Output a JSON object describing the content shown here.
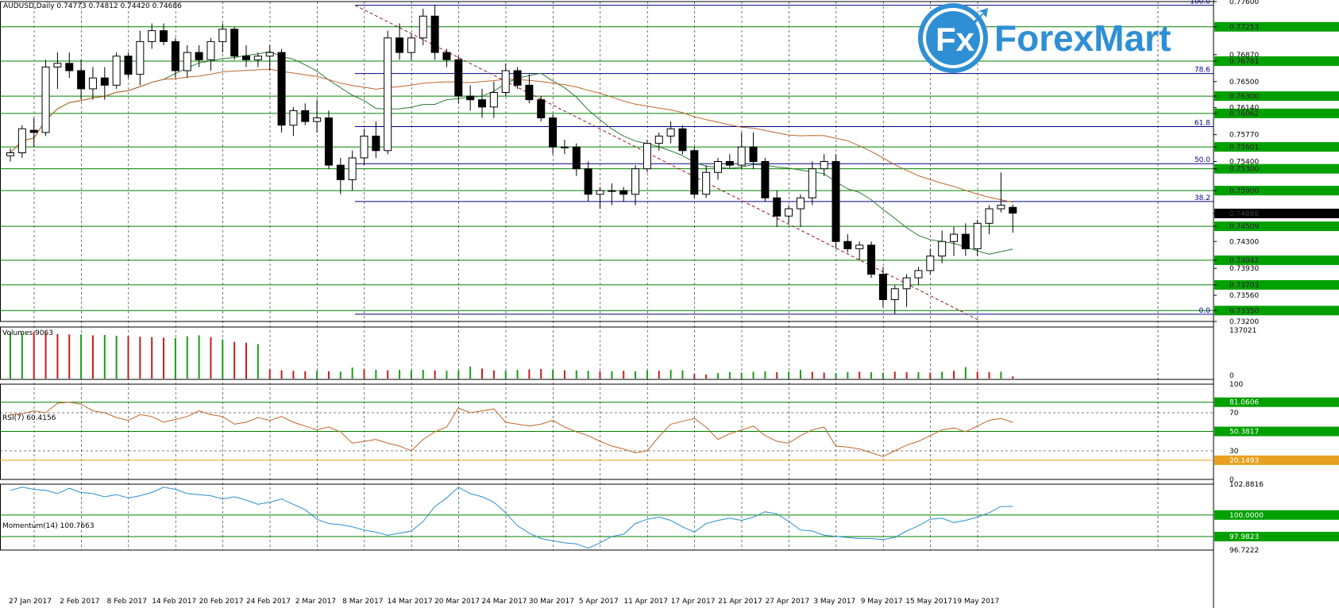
{
  "chart_data": {
    "type": "candlestick",
    "symbol_header": "AUDUSD,Daily  0.74773 0.74812 0.74420 0.74686",
    "logo_text": "ForexMart",
    "logo_mark": "Fx",
    "price_axis": {
      "min": 0.732,
      "max": 0.776,
      "ticks": [
        "0.77600",
        "0.77253",
        "0.76870",
        "0.76781",
        "0.76500",
        "0.76300",
        "0.76140",
        "0.76062",
        "0.75770",
        "0.75601",
        "0.75400",
        "0.75300",
        "0.75000",
        "0.74686",
        "0.74509",
        "0.74300",
        "0.74042",
        "0.73930",
        "0.73703",
        "0.73560",
        "0.73350",
        "0.73200"
      ]
    },
    "highlighted_levels": [
      {
        "price": 0.77253,
        "label": "0.77253",
        "color": "#00a000"
      },
      {
        "price": 0.76781,
        "label": "0.76781",
        "color": "#00a000"
      },
      {
        "price": 0.763,
        "label": "0.76300",
        "color": "#00a000"
      },
      {
        "price": 0.76062,
        "label": "0.76062",
        "color": "#00a000"
      },
      {
        "price": 0.75601,
        "label": "0.75601",
        "color": "#00a000"
      },
      {
        "price": 0.753,
        "label": "0.75300",
        "color": "#00a000"
      },
      {
        "price": 0.75,
        "label": "0.75000",
        "color": "#00a000"
      },
      {
        "price": 0.74686,
        "label": "0.74686",
        "color": "#000000"
      },
      {
        "price": 0.74509,
        "label": "0.74509",
        "color": "#00a000"
      },
      {
        "price": 0.74042,
        "label": "0.74042",
        "color": "#00a000"
      },
      {
        "price": 0.73703,
        "label": "0.73703",
        "color": "#00a000"
      },
      {
        "price": 0.7335,
        "label": "0.73350",
        "color": "#00a000"
      }
    ],
    "fibonacci": [
      {
        "label": "100.0",
        "price": 0.7755
      },
      {
        "label": "78.6",
        "price": 0.7661
      },
      {
        "label": "61.8",
        "price": 0.7588
      },
      {
        "label": "50.0",
        "price": 0.7537
      },
      {
        "label": "38.2",
        "price": 0.7485
      },
      {
        "label": "0.0",
        "price": 0.733
      }
    ],
    "x_labels": [
      "27 Jan 2017",
      "2 Feb 2017",
      "8 Feb 2017",
      "14 Feb 2017",
      "20 Feb 2017",
      "24 Feb 2017",
      "2 Mar 2017",
      "8 Mar 2017",
      "14 Mar 2017",
      "20 Mar 2017",
      "24 Mar 2017",
      "30 Mar 2017",
      "5 Apr 2017",
      "11 Apr 2017",
      "17 Apr 2017",
      "21 Apr 2017",
      "27 Apr 2017",
      "3 May 2017",
      "9 May 2017",
      "15 May 2017",
      "19 May 2017"
    ],
    "candles": [
      [
        0.7548,
        0.7558,
        0.754,
        0.7552
      ],
      [
        0.7552,
        0.759,
        0.7545,
        0.7585
      ],
      [
        0.7583,
        0.76,
        0.756,
        0.758
      ],
      [
        0.758,
        0.768,
        0.7575,
        0.767
      ],
      [
        0.767,
        0.769,
        0.764,
        0.7675
      ],
      [
        0.7675,
        0.769,
        0.7655,
        0.7665
      ],
      [
        0.7665,
        0.768,
        0.7625,
        0.764
      ],
      [
        0.764,
        0.767,
        0.7625,
        0.7655
      ],
      [
        0.7655,
        0.767,
        0.7625,
        0.7645
      ],
      [
        0.7645,
        0.769,
        0.764,
        0.7685
      ],
      [
        0.7685,
        0.769,
        0.7655,
        0.766
      ],
      [
        0.766,
        0.772,
        0.7645,
        0.7705
      ],
      [
        0.7705,
        0.773,
        0.7695,
        0.772
      ],
      [
        0.772,
        0.773,
        0.77,
        0.7705
      ],
      [
        0.7705,
        0.771,
        0.7655,
        0.7665
      ],
      [
        0.7665,
        0.77,
        0.7655,
        0.769
      ],
      [
        0.769,
        0.77,
        0.767,
        0.768
      ],
      [
        0.768,
        0.771,
        0.7665,
        0.7705
      ],
      [
        0.7705,
        0.773,
        0.769,
        0.7722
      ],
      [
        0.7722,
        0.7725,
        0.768,
        0.7685
      ],
      [
        0.7685,
        0.77,
        0.767,
        0.768
      ],
      [
        0.768,
        0.769,
        0.767,
        0.7685
      ],
      [
        0.7685,
        0.77,
        0.7665,
        0.769
      ],
      [
        0.769,
        0.7695,
        0.758,
        0.759
      ],
      [
        0.759,
        0.7615,
        0.7575,
        0.761
      ],
      [
        0.761,
        0.762,
        0.759,
        0.7595
      ],
      [
        0.7595,
        0.7625,
        0.758,
        0.76
      ],
      [
        0.76,
        0.761,
        0.753,
        0.7535
      ],
      [
        0.7535,
        0.7545,
        0.7495,
        0.7515
      ],
      [
        0.7515,
        0.7555,
        0.75,
        0.7545
      ],
      [
        0.7545,
        0.7585,
        0.7535,
        0.7575
      ],
      [
        0.7575,
        0.7595,
        0.7545,
        0.7555
      ],
      [
        0.7555,
        0.772,
        0.755,
        0.771
      ],
      [
        0.771,
        0.773,
        0.768,
        0.769
      ],
      [
        0.769,
        0.7715,
        0.768,
        0.771
      ],
      [
        0.771,
        0.775,
        0.77,
        0.774
      ],
      [
        0.774,
        0.7755,
        0.768,
        0.769
      ],
      [
        0.769,
        0.7695,
        0.767,
        0.768
      ],
      [
        0.768,
        0.7685,
        0.762,
        0.763
      ],
      [
        0.763,
        0.7645,
        0.761,
        0.7625
      ],
      [
        0.7625,
        0.764,
        0.76,
        0.7615
      ],
      [
        0.7615,
        0.765,
        0.76,
        0.7635
      ],
      [
        0.7635,
        0.7675,
        0.763,
        0.7665
      ],
      [
        0.7665,
        0.767,
        0.764,
        0.7645
      ],
      [
        0.7645,
        0.766,
        0.762,
        0.7625
      ],
      [
        0.7625,
        0.763,
        0.7595,
        0.76
      ],
      [
        0.76,
        0.7605,
        0.755,
        0.756
      ],
      [
        0.756,
        0.757,
        0.755,
        0.756
      ],
      [
        0.756,
        0.7565,
        0.752,
        0.753
      ],
      [
        0.753,
        0.754,
        0.7485,
        0.7495
      ],
      [
        0.7495,
        0.7505,
        0.7475,
        0.75
      ],
      [
        0.75,
        0.751,
        0.748,
        0.75
      ],
      [
        0.75,
        0.7505,
        0.7485,
        0.7495
      ],
      [
        0.7495,
        0.7535,
        0.748,
        0.753
      ],
      [
        0.753,
        0.757,
        0.7525,
        0.7565
      ],
      [
        0.7565,
        0.758,
        0.7555,
        0.7575
      ],
      [
        0.7575,
        0.7595,
        0.7565,
        0.7585
      ],
      [
        0.7585,
        0.759,
        0.755,
        0.7555
      ],
      [
        0.7555,
        0.756,
        0.749,
        0.7495
      ],
      [
        0.7495,
        0.7535,
        0.749,
        0.7525
      ],
      [
        0.7525,
        0.7545,
        0.7515,
        0.754
      ],
      [
        0.754,
        0.755,
        0.753,
        0.7535
      ],
      [
        0.7535,
        0.758,
        0.753,
        0.756
      ],
      [
        0.756,
        0.758,
        0.753,
        0.754
      ],
      [
        0.754,
        0.7545,
        0.7485,
        0.749
      ],
      [
        0.749,
        0.75,
        0.745,
        0.7465
      ],
      [
        0.7465,
        0.748,
        0.7455,
        0.7475
      ],
      [
        0.7475,
        0.7495,
        0.745,
        0.749
      ],
      [
        0.749,
        0.754,
        0.748,
        0.753
      ],
      [
        0.753,
        0.755,
        0.752,
        0.754
      ],
      [
        0.754,
        0.755,
        0.742,
        0.743
      ],
      [
        0.743,
        0.744,
        0.7415,
        0.742
      ],
      [
        0.742,
        0.743,
        0.7405,
        0.7425
      ],
      [
        0.7425,
        0.743,
        0.738,
        0.7385
      ],
      [
        0.7385,
        0.7395,
        0.734,
        0.735
      ],
      [
        0.735,
        0.737,
        0.733,
        0.7365
      ],
      [
        0.7365,
        0.7385,
        0.734,
        0.738
      ],
      [
        0.738,
        0.7395,
        0.737,
        0.739
      ],
      [
        0.739,
        0.742,
        0.7385,
        0.741
      ],
      [
        0.741,
        0.7445,
        0.74,
        0.743
      ],
      [
        0.743,
        0.745,
        0.741,
        0.744
      ],
      [
        0.744,
        0.7455,
        0.741,
        0.742
      ],
      [
        0.742,
        0.746,
        0.741,
        0.7455
      ],
      [
        0.7455,
        0.748,
        0.744,
        0.7475
      ],
      [
        0.7475,
        0.7525,
        0.747,
        0.748
      ],
      [
        0.7477,
        0.7481,
        0.7442,
        0.7469
      ]
    ],
    "volume_indicator": {
      "label": "Volumes 9063",
      "max_tick": "137021",
      "min_tick": "0"
    },
    "volumes": [
      [
        100,
        1
      ],
      [
        98,
        1
      ],
      [
        101,
        0
      ],
      [
        99,
        0
      ],
      [
        97,
        0
      ],
      [
        96,
        0
      ],
      [
        96,
        1
      ],
      [
        94,
        0
      ],
      [
        95,
        1
      ],
      [
        93,
        1
      ],
      [
        92,
        0
      ],
      [
        91,
        0
      ],
      [
        90,
        0
      ],
      [
        89,
        0
      ],
      [
        88,
        1
      ],
      [
        92,
        1
      ],
      [
        94,
        1
      ],
      [
        90,
        0
      ],
      [
        85,
        1
      ],
      [
        80,
        0
      ],
      [
        78,
        0
      ],
      [
        75,
        1
      ],
      [
        20,
        0
      ],
      [
        18,
        0
      ],
      [
        17,
        0
      ],
      [
        16,
        0
      ],
      [
        17,
        1
      ],
      [
        16,
        0
      ],
      [
        15,
        1
      ],
      [
        24,
        1
      ],
      [
        20,
        0
      ],
      [
        19,
        1
      ],
      [
        18,
        0
      ],
      [
        19,
        1
      ],
      [
        18,
        1
      ],
      [
        19,
        1
      ],
      [
        18,
        0
      ],
      [
        17,
        1
      ],
      [
        18,
        1
      ],
      [
        26,
        1
      ],
      [
        22,
        0
      ],
      [
        18,
        0
      ],
      [
        17,
        1
      ],
      [
        19,
        1
      ],
      [
        20,
        0
      ],
      [
        21,
        0
      ],
      [
        19,
        1
      ],
      [
        18,
        0
      ],
      [
        18,
        1
      ],
      [
        17,
        1
      ],
      [
        16,
        0
      ],
      [
        16,
        1
      ],
      [
        17,
        0
      ],
      [
        16,
        1
      ],
      [
        18,
        1
      ],
      [
        17,
        0
      ],
      [
        19,
        1
      ],
      [
        18,
        1
      ],
      [
        10,
        0
      ],
      [
        9,
        0
      ],
      [
        12,
        1
      ],
      [
        14,
        1
      ],
      [
        13,
        1
      ],
      [
        15,
        1
      ],
      [
        16,
        1
      ],
      [
        14,
        0
      ],
      [
        15,
        1
      ],
      [
        19,
        1
      ],
      [
        15,
        0
      ],
      [
        13,
        0
      ],
      [
        12,
        1
      ],
      [
        14,
        1
      ],
      [
        15,
        0
      ],
      [
        14,
        1
      ],
      [
        13,
        1
      ],
      [
        15,
        0
      ],
      [
        14,
        0
      ],
      [
        14,
        1
      ],
      [
        13,
        0
      ],
      [
        15,
        1
      ],
      [
        17,
        0
      ],
      [
        25,
        1
      ],
      [
        15,
        0
      ],
      [
        14,
        0
      ],
      [
        15,
        1
      ],
      [
        5,
        0
      ]
    ],
    "rsi": {
      "label": "RSI(7) 60.4156",
      "ticks": [
        "100",
        "70",
        "30",
        "0"
      ],
      "levels": [
        {
          "value": 81.0606,
          "label": "81.0606",
          "color": "#00a000"
        },
        {
          "value": 50.3817,
          "label": "50.3817",
          "color": "#00a000"
        },
        {
          "value": 20.1493,
          "label": "20.1493",
          "color": "#e8a020"
        }
      ],
      "values": [
        68,
        69,
        72,
        70,
        80,
        81,
        79,
        72,
        70,
        65,
        62,
        68,
        66,
        60,
        63,
        66,
        72,
        68,
        66,
        58,
        60,
        65,
        62,
        66,
        60,
        56,
        52,
        55,
        50,
        38,
        40,
        42,
        38,
        35,
        30,
        42,
        50,
        55,
        75,
        70,
        72,
        74,
        60,
        58,
        56,
        58,
        62,
        55,
        50,
        46,
        40,
        35,
        32,
        28,
        30,
        45,
        58,
        61,
        64,
        55,
        42,
        48,
        52,
        56,
        46,
        40,
        38,
        46,
        52,
        55,
        35,
        34,
        32,
        28,
        24,
        30,
        36,
        40,
        46,
        52,
        54,
        50,
        56,
        62,
        64,
        60
      ]
    },
    "momentum": {
      "label": "Momentum(14) 100.7663",
      "ticks": [
        "102.8816",
        "100.0000",
        "96.7222"
      ],
      "levels": [
        {
          "value": 100.0,
          "label": "100.0000",
          "color": "#00a000"
        },
        {
          "value": 97.9823,
          "label": "97.9823",
          "color": "#00a000"
        }
      ],
      "values": [
        102.3,
        102.6,
        102.4,
        102.3,
        102.0,
        102.5,
        102.1,
        102.0,
        101.7,
        101.9,
        101.6,
        101.8,
        102.1,
        102.6,
        102.4,
        102.0,
        101.9,
        101.8,
        101.5,
        101.7,
        101.4,
        101.0,
        101.2,
        101.5,
        101.0,
        100.5,
        99.6,
        99.2,
        99.1,
        98.9,
        98.6,
        98.4,
        98.1,
        98.3,
        98.5,
        99.4,
        100.8,
        101.6,
        102.6,
        102.0,
        101.7,
        101.2,
        100.2,
        99.0,
        98.3,
        97.8,
        97.6,
        97.4,
        97.3,
        96.9,
        97.4,
        98.0,
        98.2,
        99.2,
        99.6,
        99.8,
        99.5,
        98.9,
        98.4,
        99.2,
        99.5,
        99.7,
        99.5,
        99.8,
        100.3,
        100.1,
        99.4,
        98.6,
        98.5,
        98.1,
        98.0,
        97.9,
        97.8,
        97.8,
        97.7,
        97.9,
        98.5,
        99.0,
        99.6,
        99.7,
        99.3,
        99.5,
        99.8,
        100.2,
        100.8,
        100.8
      ]
    }
  }
}
